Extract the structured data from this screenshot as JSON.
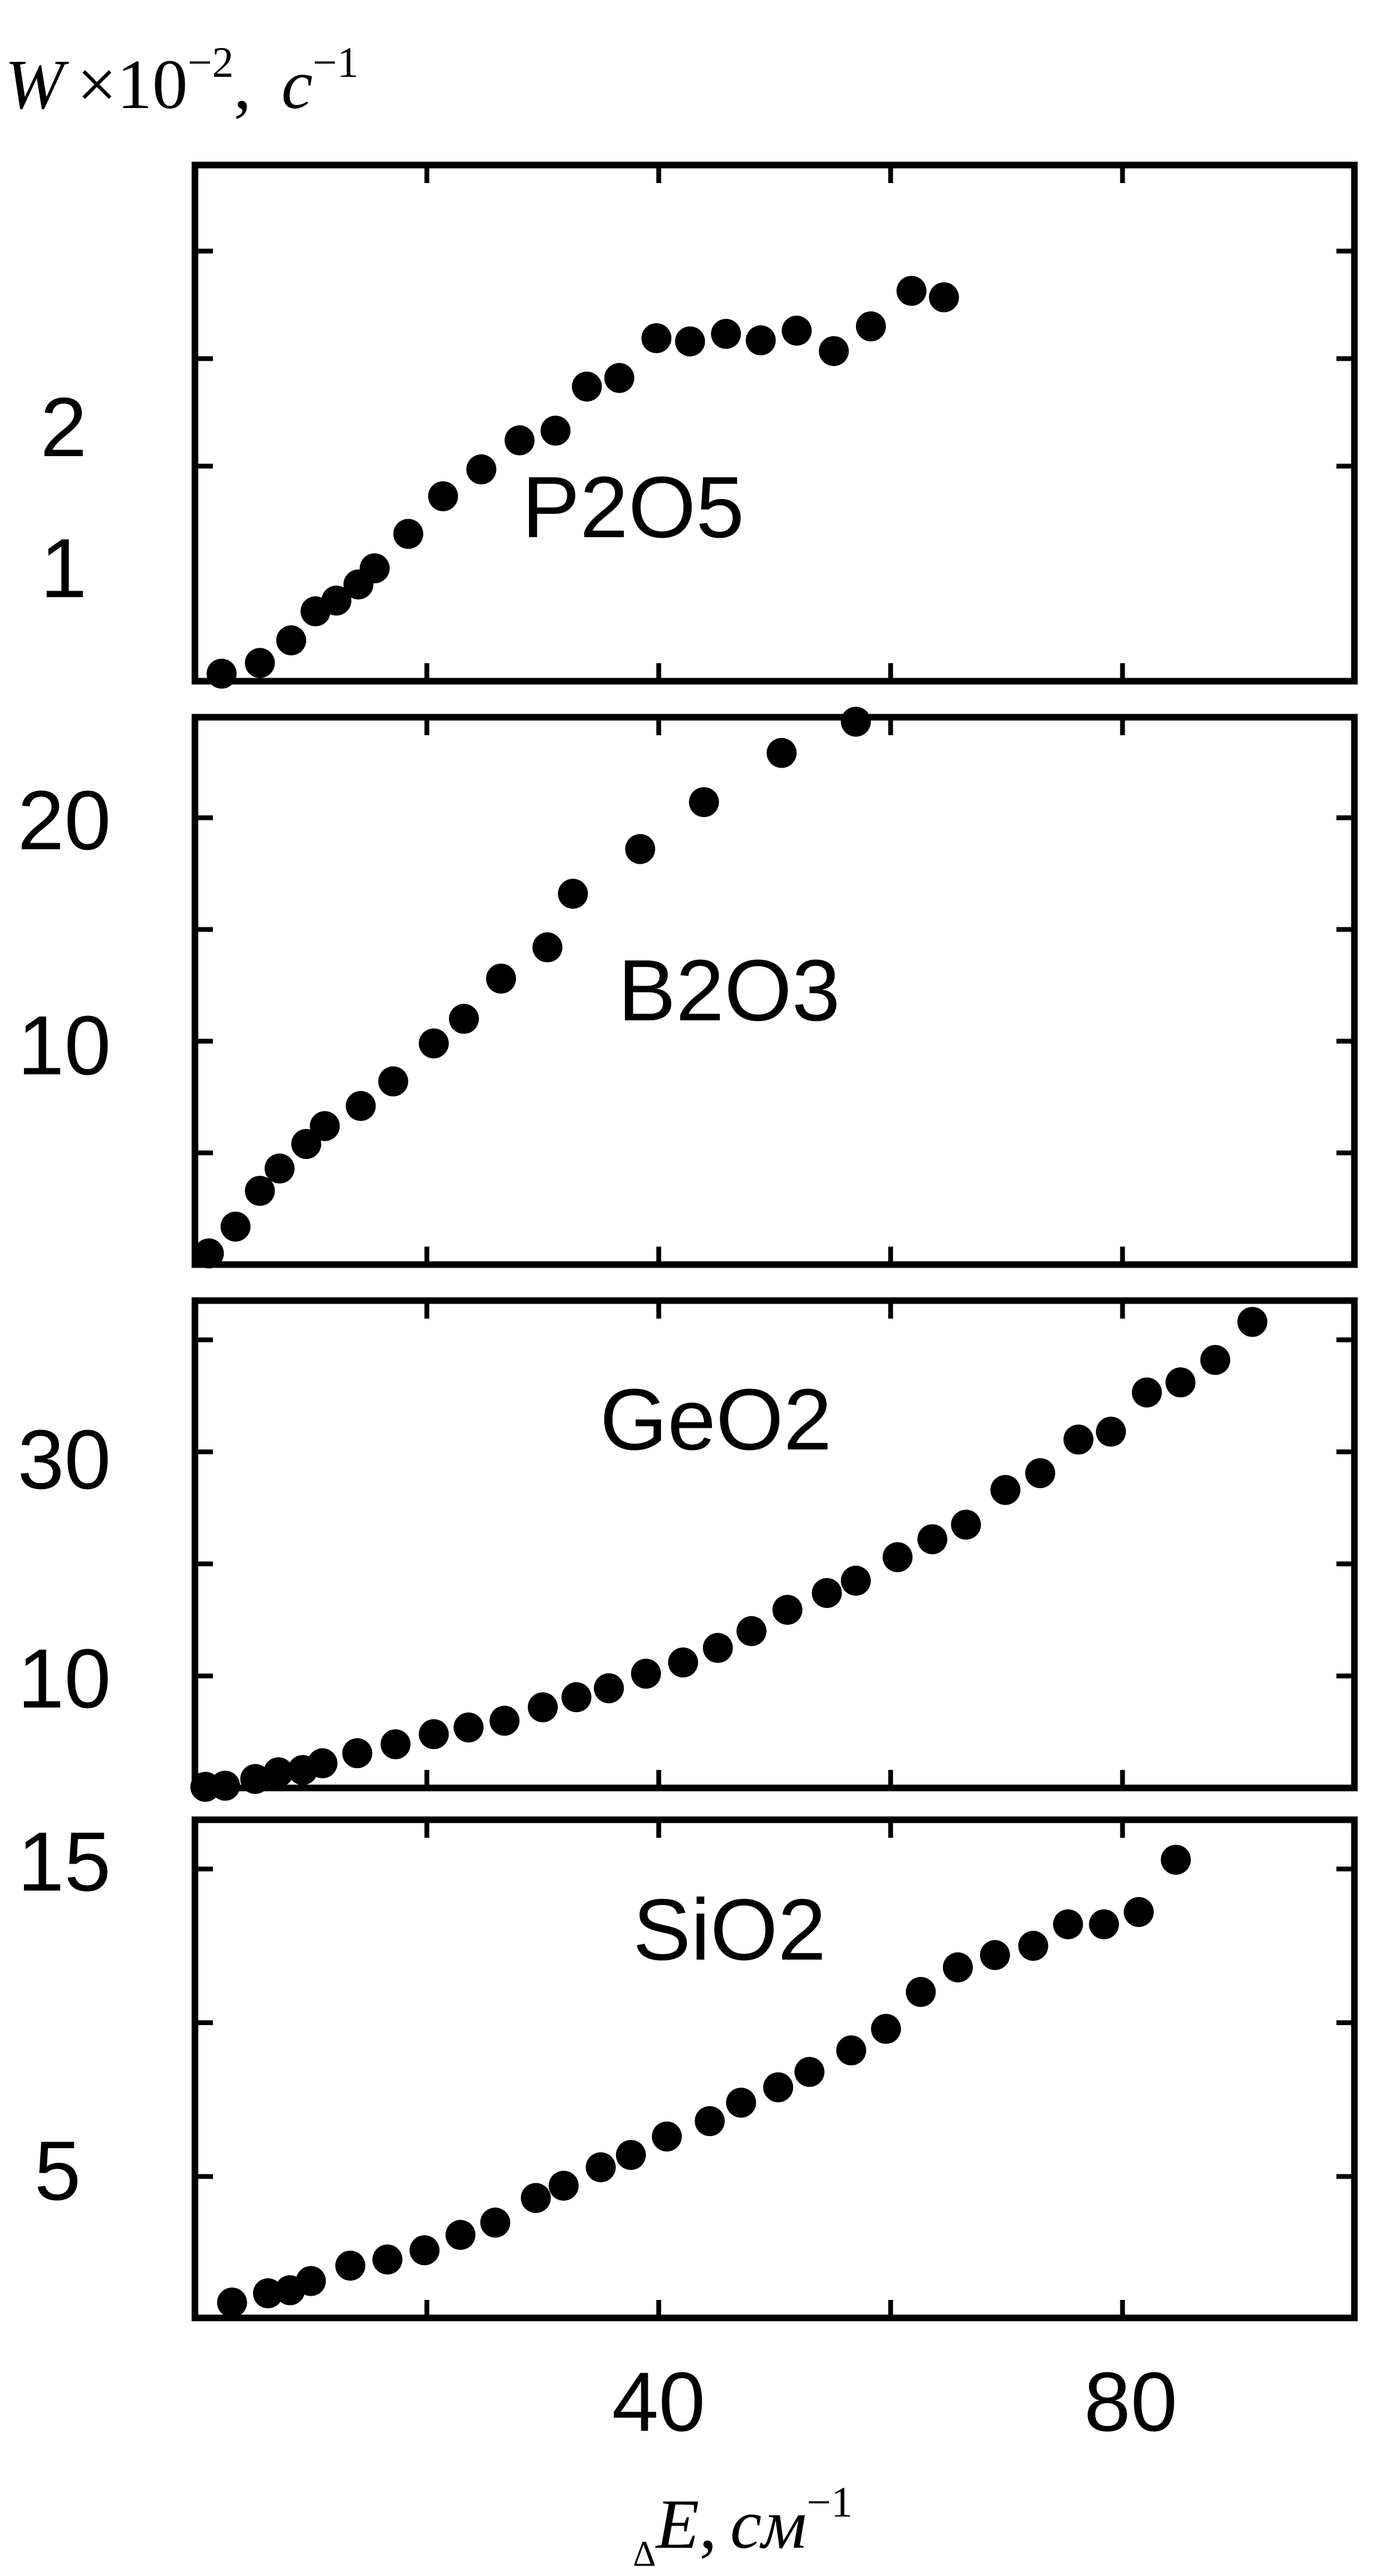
{
  "chart_data": {
    "type": "scatter",
    "ylabel": {
      "base": "W",
      "times": "×10",
      "exp": "−2",
      "sep": ",",
      "unit": "c",
      "unit_exp": "−1"
    },
    "xlabel": {
      "delta": "Δ",
      "base": "E",
      "sep": ",",
      "unit": "см",
      "unit_exp": "−1"
    },
    "xlim": [
      0,
      100
    ],
    "x_ticks": [
      20,
      40,
      60,
      80
    ],
    "x_tick_labels": [
      "40",
      "80"
    ],
    "panels": [
      {
        "name": "P2O5",
        "label": "P2O5",
        "ylim": [
          -1.0,
          3.8
        ],
        "y_ticks": [
          1,
          2,
          3
        ],
        "y_tick_labels": [
          "1",
          "2"
        ],
        "points": [
          [
            2.3,
            -0.93
          ],
          [
            5.6,
            -0.83
          ],
          [
            8.3,
            -0.62
          ],
          [
            10.4,
            -0.35
          ],
          [
            12.2,
            -0.25
          ],
          [
            14.1,
            -0.1
          ],
          [
            15.5,
            0.05
          ],
          [
            18.4,
            0.37
          ],
          [
            21.4,
            0.72
          ],
          [
            24.7,
            0.97
          ],
          [
            28.0,
            1.24
          ],
          [
            31.1,
            1.33
          ],
          [
            33.8,
            1.74
          ],
          [
            36.6,
            1.82
          ],
          [
            39.8,
            2.19
          ],
          [
            42.7,
            2.16
          ],
          [
            45.8,
            2.23
          ],
          [
            48.8,
            2.17
          ],
          [
            51.9,
            2.26
          ],
          [
            55.1,
            2.07
          ],
          [
            58.3,
            2.3
          ],
          [
            61.8,
            2.63
          ],
          [
            64.6,
            2.57
          ]
        ]
      },
      {
        "name": "B2O3",
        "label": "B2O3",
        "ylim": [
          0,
          24.5
        ],
        "y_ticks": [
          5,
          10,
          15,
          20
        ],
        "y_tick_labels": [
          "10",
          "20"
        ],
        "points": [
          [
            1.2,
            0.5
          ],
          [
            3.5,
            1.7
          ],
          [
            5.6,
            3.3
          ],
          [
            7.3,
            4.3
          ],
          [
            9.6,
            5.4
          ],
          [
            11.2,
            6.2
          ],
          [
            14.3,
            7.1
          ],
          [
            17.1,
            8.2
          ],
          [
            20.6,
            9.9
          ],
          [
            23.2,
            11.0
          ],
          [
            26.4,
            12.8
          ],
          [
            30.4,
            14.2
          ],
          [
            32.6,
            16.6
          ],
          [
            38.4,
            18.6
          ],
          [
            43.9,
            20.7
          ],
          [
            50.6,
            22.9
          ],
          [
            57.0,
            24.3
          ]
        ]
      },
      {
        "name": "GeO2",
        "label": "GeO2",
        "ylim": [
          0,
          43.5
        ],
        "y_ticks": [
          10,
          20,
          30,
          40
        ],
        "y_tick_labels": [
          "10",
          "30"
        ],
        "points": [
          [
            0.9,
            0.1
          ],
          [
            2.6,
            0.2
          ],
          [
            5.2,
            0.8
          ],
          [
            7.2,
            1.4
          ],
          [
            9.3,
            1.6
          ],
          [
            11.0,
            2.2
          ],
          [
            14.0,
            3.1
          ],
          [
            17.3,
            3.9
          ],
          [
            20.6,
            4.8
          ],
          [
            23.6,
            5.4
          ],
          [
            26.7,
            6.0
          ],
          [
            30.0,
            7.2
          ],
          [
            32.9,
            8.1
          ],
          [
            35.7,
            8.9
          ],
          [
            38.9,
            10.2
          ],
          [
            42.1,
            11.2
          ],
          [
            45.1,
            12.5
          ],
          [
            48.0,
            14.0
          ],
          [
            51.1,
            15.9
          ],
          [
            54.5,
            17.4
          ],
          [
            57.0,
            18.5
          ],
          [
            60.6,
            20.6
          ],
          [
            63.6,
            22.2
          ],
          [
            66.5,
            23.5
          ],
          [
            69.9,
            26.6
          ],
          [
            72.9,
            28.1
          ],
          [
            76.2,
            31.1
          ],
          [
            79.0,
            31.8
          ],
          [
            82.1,
            35.3
          ],
          [
            85.0,
            36.2
          ],
          [
            88.0,
            38.2
          ],
          [
            91.2,
            41.6
          ]
        ]
      },
      {
        "name": "SiO2",
        "label": "SiO2",
        "ylim": [
          0.4,
          16.6
        ],
        "y_ticks": [
          5,
          10,
          15
        ],
        "y_tick_labels": [
          "5",
          "15"
        ],
        "points": [
          [
            3.2,
            0.9
          ],
          [
            6.3,
            1.2
          ],
          [
            8.2,
            1.3
          ],
          [
            10.0,
            1.6
          ],
          [
            13.4,
            2.1
          ],
          [
            16.6,
            2.3
          ],
          [
            19.8,
            2.6
          ],
          [
            22.9,
            3.1
          ],
          [
            25.9,
            3.5
          ],
          [
            29.4,
            4.3
          ],
          [
            31.8,
            4.7
          ],
          [
            35.0,
            5.3
          ],
          [
            37.6,
            5.7
          ],
          [
            40.7,
            6.3
          ],
          [
            44.4,
            6.8
          ],
          [
            47.1,
            7.4
          ],
          [
            50.3,
            7.9
          ],
          [
            53.0,
            8.4
          ],
          [
            56.6,
            9.1
          ],
          [
            59.6,
            9.8
          ],
          [
            62.6,
            11.0
          ],
          [
            65.8,
            11.8
          ],
          [
            69.0,
            12.2
          ],
          [
            72.3,
            12.5
          ],
          [
            75.3,
            13.2
          ],
          [
            78.4,
            13.2
          ],
          [
            81.4,
            13.6
          ],
          [
            84.6,
            15.3
          ]
        ]
      }
    ]
  }
}
